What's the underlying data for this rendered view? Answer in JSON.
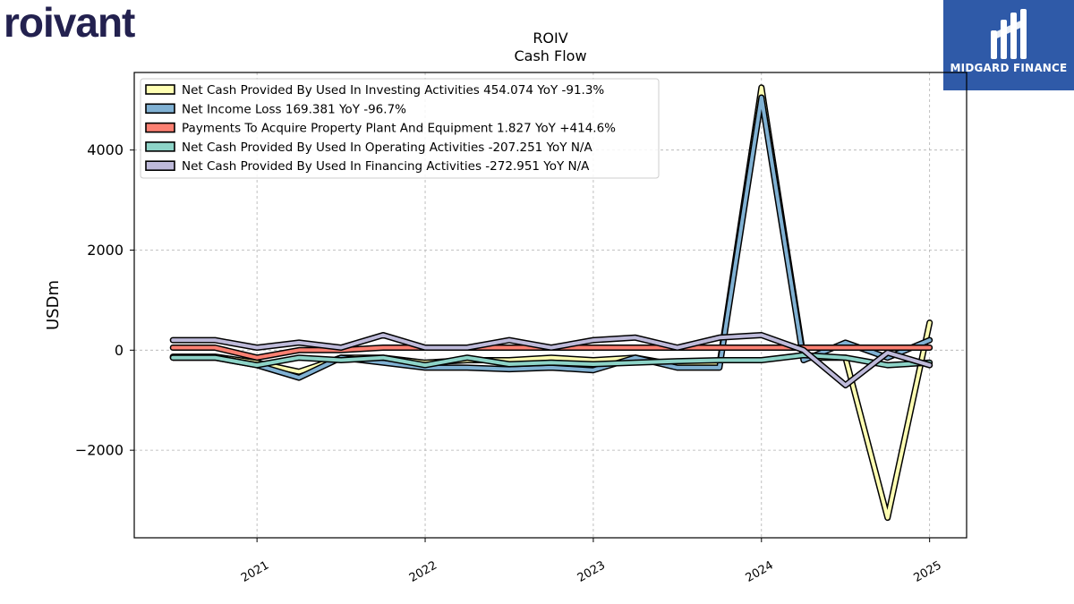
{
  "brand": {
    "logo_text": "roivant",
    "logo_color": "#23214f",
    "partner_name": "MIDGARD FINANCE",
    "partner_bg": "#2f5aa8"
  },
  "chart_data": {
    "type": "line",
    "title": "ROIV",
    "subtitle": "Cash Flow",
    "xlabel": "",
    "ylabel": "USDm",
    "ylim": [
      -3750,
      5550
    ],
    "yticks": [
      -2000,
      0,
      2000,
      4000
    ],
    "ytick_labels": [
      "−2000",
      "0",
      "2000",
      "4000"
    ],
    "xticks": [
      "2021",
      "2022",
      "2023",
      "2024",
      "2025"
    ],
    "grid": true,
    "legend_position": "top-left",
    "x": [
      2020.5,
      2020.75,
      2021.0,
      2021.25,
      2021.5,
      2021.75,
      2022.0,
      2022.25,
      2022.5,
      2022.75,
      2023.0,
      2023.25,
      2023.5,
      2023.75,
      2024.0,
      2024.25,
      2024.5,
      2024.75,
      2025.0
    ],
    "series": [
      {
        "name": "Net Cash Provided By Used In Investing Activities",
        "legend_label": "Net Cash Provided By Used In Investing Activities  454.074 YoY -91.3%",
        "color": "#ffffb3",
        "values": [
          -130,
          -130,
          -250,
          -430,
          -150,
          -150,
          -250,
          -200,
          -200,
          -150,
          -200,
          -150,
          -300,
          -300,
          5250,
          -150,
          -150,
          -3350,
          550
        ]
      },
      {
        "name": "Net Income Loss",
        "legend_label": "Net Income Loss  169.381 YoY -96.7%",
        "color": "#80b1d3",
        "values": [
          -150,
          -150,
          -300,
          -550,
          -150,
          -250,
          -350,
          -350,
          -380,
          -350,
          -400,
          -150,
          -350,
          -350,
          5050,
          -200,
          150,
          -150,
          200
        ]
      },
      {
        "name": "Payments To Acquire Property Plant And Equipment",
        "legend_label": "Payments To Acquire Property Plant And Equipment  1.827 YoY +414.6%",
        "color": "#fb8072",
        "values": [
          50,
          50,
          -150,
          0,
          0,
          50,
          50,
          50,
          50,
          50,
          50,
          50,
          50,
          50,
          50,
          50,
          50,
          50,
          50
        ]
      },
      {
        "name": "Net Cash Provided By Used In Operating Activities",
        "legend_label": "Net Cash Provided By Used In Operating Activities  -207.251 YoY N/A",
        "color": "#8dd3c7",
        "values": [
          -150,
          -150,
          -300,
          -150,
          -200,
          -150,
          -300,
          -150,
          -280,
          -250,
          -280,
          -250,
          -220,
          -200,
          -200,
          -100,
          -150,
          -300,
          -250
        ]
      },
      {
        "name": "Net Cash Provided By Used In Financing Activities",
        "legend_label": "Net Cash Provided By Used In Financing Activities  -272.951 YoY N/A",
        "color": "#bebada",
        "values": [
          200,
          200,
          50,
          150,
          50,
          300,
          50,
          50,
          200,
          50,
          200,
          250,
          50,
          250,
          300,
          0,
          -700,
          -50,
          -300
        ]
      }
    ]
  }
}
